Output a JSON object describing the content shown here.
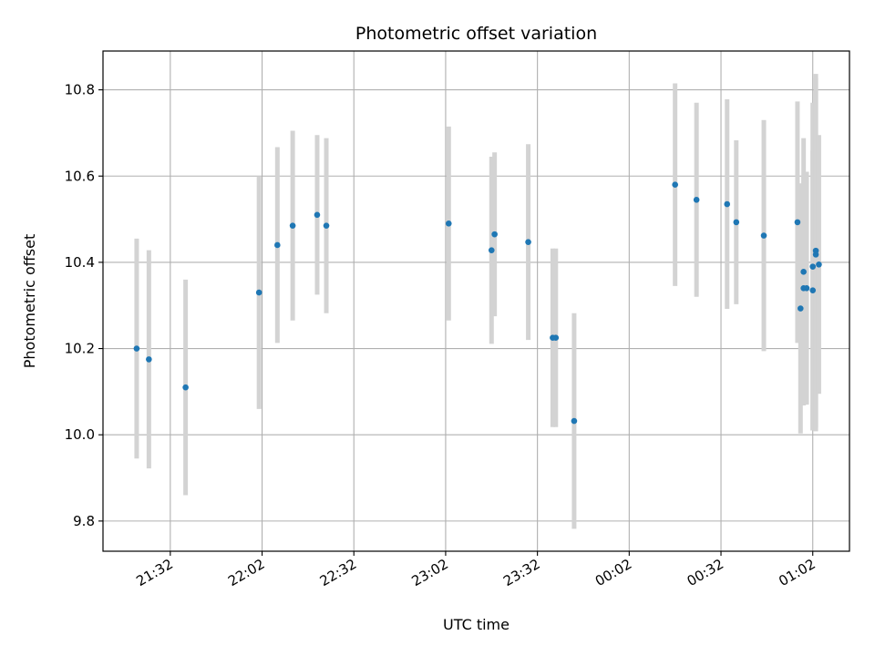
{
  "chart_data": {
    "type": "scatter",
    "title": "Photometric offset variation",
    "xlabel": "UTC time",
    "ylabel": "Photometric offset",
    "x_unit": "minutes",
    "xlim": [
      "21:10",
      "01:14"
    ],
    "ylim": [
      9.73,
      10.89
    ],
    "grid": true,
    "x_ticks": [
      {
        "value": "21:32",
        "label": "21:32"
      },
      {
        "value": "22:02",
        "label": "22:02"
      },
      {
        "value": "22:32",
        "label": "22:32"
      },
      {
        "value": "23:02",
        "label": "23:02"
      },
      {
        "value": "23:32",
        "label": "23:32"
      },
      {
        "value": "00:02",
        "label": "00:02"
      },
      {
        "value": "00:32",
        "label": "00:32"
      },
      {
        "value": "01:02",
        "label": "01:02"
      }
    ],
    "y_ticks": [
      {
        "value": 9.8,
        "label": "9.8"
      },
      {
        "value": 10.0,
        "label": "10.0"
      },
      {
        "value": 10.2,
        "label": "10.2"
      },
      {
        "value": 10.4,
        "label": "10.4"
      },
      {
        "value": 10.6,
        "label": "10.6"
      },
      {
        "value": 10.8,
        "label": "10.8"
      }
    ],
    "marker_color": "#1f77b4",
    "errorbar_color": "#d3d3d3",
    "points": [
      {
        "x": "21:21",
        "y": 10.2,
        "yerr": 0.255
      },
      {
        "x": "21:25",
        "y": 10.175,
        "yerr": 0.253
      },
      {
        "x": "21:37",
        "y": 10.11,
        "yerr": 0.25
      },
      {
        "x": "22:01",
        "y": 10.33,
        "yerr": 0.27
      },
      {
        "x": "22:07",
        "y": 10.44,
        "yerr": 0.227
      },
      {
        "x": "22:12",
        "y": 10.485,
        "yerr": 0.22
      },
      {
        "x": "22:20",
        "y": 10.51,
        "yerr": 0.185
      },
      {
        "x": "22:23",
        "y": 10.485,
        "yerr": 0.203
      },
      {
        "x": "23:03",
        "y": 10.49,
        "yerr": 0.225
      },
      {
        "x": "23:17",
        "y": 10.428,
        "yerr": 0.217
      },
      {
        "x": "23:18",
        "y": 10.465,
        "yerr": 0.19
      },
      {
        "x": "23:29",
        "y": 10.447,
        "yerr": 0.227
      },
      {
        "x": "23:37",
        "y": 10.225,
        "yerr": 0.207
      },
      {
        "x": "23:38",
        "y": 10.225,
        "yerr": 0.207
      },
      {
        "x": "23:44",
        "y": 10.032,
        "yerr": 0.25
      },
      {
        "x": "00:17",
        "y": 10.58,
        "yerr": 0.235
      },
      {
        "x": "00:24",
        "y": 10.545,
        "yerr": 0.225
      },
      {
        "x": "00:34",
        "y": 10.535,
        "yerr": 0.243
      },
      {
        "x": "00:37",
        "y": 10.493,
        "yerr": 0.19
      },
      {
        "x": "00:46",
        "y": 10.462,
        "yerr": 0.268
      },
      {
        "x": "00:57",
        "y": 10.493,
        "yerr": 0.28
      },
      {
        "x": "00:58",
        "y": 10.293,
        "yerr": 0.29
      },
      {
        "x": "00:59",
        "y": 10.378,
        "yerr": 0.31
      },
      {
        "x": "00:59",
        "y": 10.34,
        "yerr": 0.26
      },
      {
        "x": "01:00",
        "y": 10.34,
        "yerr": 0.27
      },
      {
        "x": "01:02",
        "y": 10.335,
        "yerr": 0.325
      },
      {
        "x": "01:02",
        "y": 10.39,
        "yerr": 0.38
      },
      {
        "x": "01:03",
        "y": 10.427,
        "yerr": 0.41
      },
      {
        "x": "01:03",
        "y": 10.418,
        "yerr": 0.41
      },
      {
        "x": "01:04",
        "y": 10.395,
        "yerr": 0.3
      }
    ]
  }
}
